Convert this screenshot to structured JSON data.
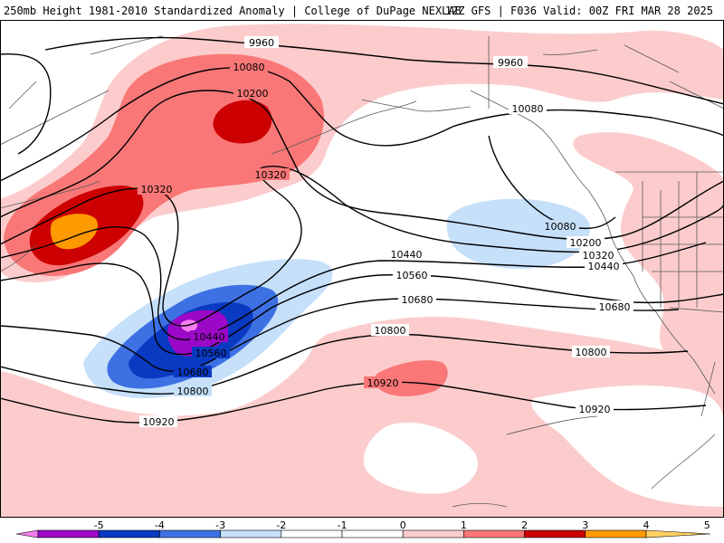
{
  "header": {
    "left_title": "250mb Height 1981-2010 Standardized Anomaly | College of DuPage NEXLAB",
    "right_title": "12Z GFS | F036 Valid: 00Z FRI MAR 28 2025"
  },
  "colors": {
    "anom_pos1": "#fccccc",
    "anom_pos2": "#f97777",
    "anom_pos3": "#cc0000",
    "anom_pos4": "#ff9900",
    "anom_neg1": "#c6e0fa",
    "anom_neg2": "#3d71e3",
    "anom_neg3": "#0a3ac2",
    "anom_neg4": "#9c08c8",
    "anom_neg5": "#f57ef0",
    "contour": "#000000",
    "coastline": "#5a5a5a"
  },
  "contours": [
    {
      "value": "9960",
      "labels": [
        "9960",
        "9960"
      ]
    },
    {
      "value": "10080",
      "labels": [
        "10080",
        "10080",
        "10080"
      ]
    },
    {
      "value": "10200",
      "labels": [
        "10200",
        "10200"
      ]
    },
    {
      "value": "10320",
      "labels": [
        "10320",
        "10320",
        "10320"
      ]
    },
    {
      "value": "10440",
      "labels": [
        "10440",
        "10440",
        "10440"
      ]
    },
    {
      "value": "10560",
      "labels": [
        "10560",
        "10560"
      ]
    },
    {
      "value": "10680",
      "labels": [
        "10680",
        "10680",
        "10680"
      ]
    },
    {
      "value": "10800",
      "labels": [
        "10800",
        "10800",
        "10800"
      ]
    },
    {
      "value": "10920",
      "labels": [
        "10920",
        "10920",
        "10920"
      ]
    }
  ],
  "legend": {
    "ticks": [
      "-5",
      "-4",
      "-3",
      "-2",
      "-1",
      "0",
      "1",
      "2",
      "3",
      "4",
      "5"
    ],
    "colors": [
      "#f57ef0",
      "#9c08c8",
      "#0a3ac2",
      "#3d71e3",
      "#c6e0fa",
      "#ffffff",
      "#ffffff",
      "#fccccc",
      "#f97777",
      "#cc0000",
      "#ff9900",
      "#ffd060"
    ]
  }
}
